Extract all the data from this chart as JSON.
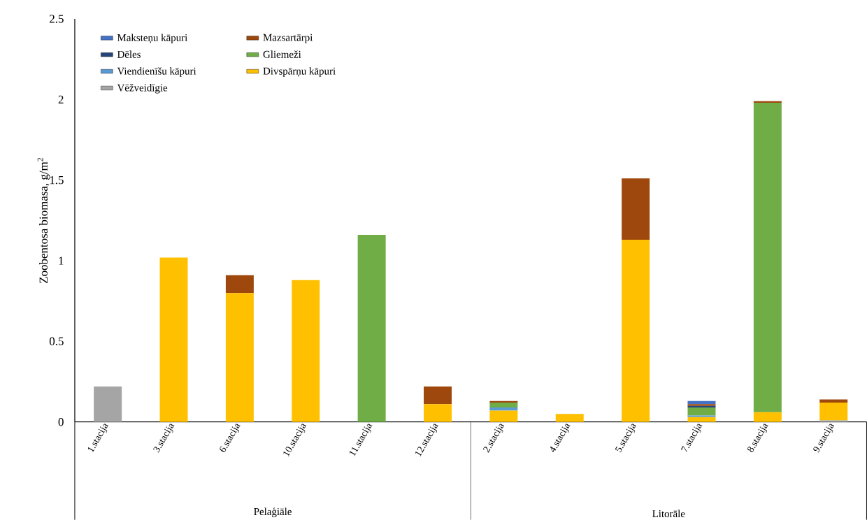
{
  "chart_data": {
    "type": "bar",
    "stacked": true,
    "ylabel": "Zoobentosa biomasa, g/m$^{2}$",
    "categories": [
      "1.stacija",
      "3.stacija",
      "6.stacija",
      "10.stacija",
      "11.stacija",
      "12.stacija",
      "2.stacija",
      "4.stacija",
      "5.stacija",
      "7.stacija",
      "8.stacija",
      "9.stacija"
    ],
    "annotations": [
      "Pelaģiāle",
      "Litorāle"
    ],
    "series": [
      {
        "name": "Vēžveidīgie",
        "color": "#a5a5a5",
        "values": [
          0.22,
          0,
          0,
          0,
          0,
          0,
          0,
          0,
          0,
          0,
          0,
          0.01
        ]
      },
      {
        "name": "Divspārņu kāpuri",
        "color": "#ffc000",
        "values": [
          0,
          1.02,
          0.8,
          0.88,
          0,
          0.11,
          0.07,
          0.05,
          1.13,
          0.03,
          0.06,
          0.11
        ]
      },
      {
        "name": "Viendienīšu kāpuri",
        "color": "#5b9bd5",
        "values": [
          0,
          0,
          0,
          0,
          0,
          0,
          0.02,
          0,
          0,
          0.01,
          0,
          0
        ]
      },
      {
        "name": "Gliemeži",
        "color": "#70ad47",
        "values": [
          0,
          0,
          0,
          0,
          1.16,
          0,
          0.03,
          0,
          0,
          0.05,
          1.92,
          0
        ]
      },
      {
        "name": "Dēles",
        "color": "#264478",
        "values": [
          0,
          0,
          0,
          0,
          0,
          0,
          0,
          0,
          0,
          0.01,
          0,
          0
        ]
      },
      {
        "name": "Mazsartārpi",
        "color": "#9e480e",
        "values": [
          0,
          0,
          0.11,
          0,
          0,
          0.11,
          0.01,
          0,
          0.38,
          0.01,
          0.01,
          0.02
        ]
      },
      {
        "name": "Maksteņu kāpuri",
        "color": "#4472c4",
        "values": [
          0,
          0,
          0,
          0,
          0,
          0,
          0,
          0,
          0,
          0.02,
          0,
          0
        ]
      }
    ],
    "ylim": [
      0,
      2.5
    ],
    "yticks": [
      0,
      0.5,
      1,
      1.5,
      2,
      2.5
    ],
    "legend": "top left"
  }
}
